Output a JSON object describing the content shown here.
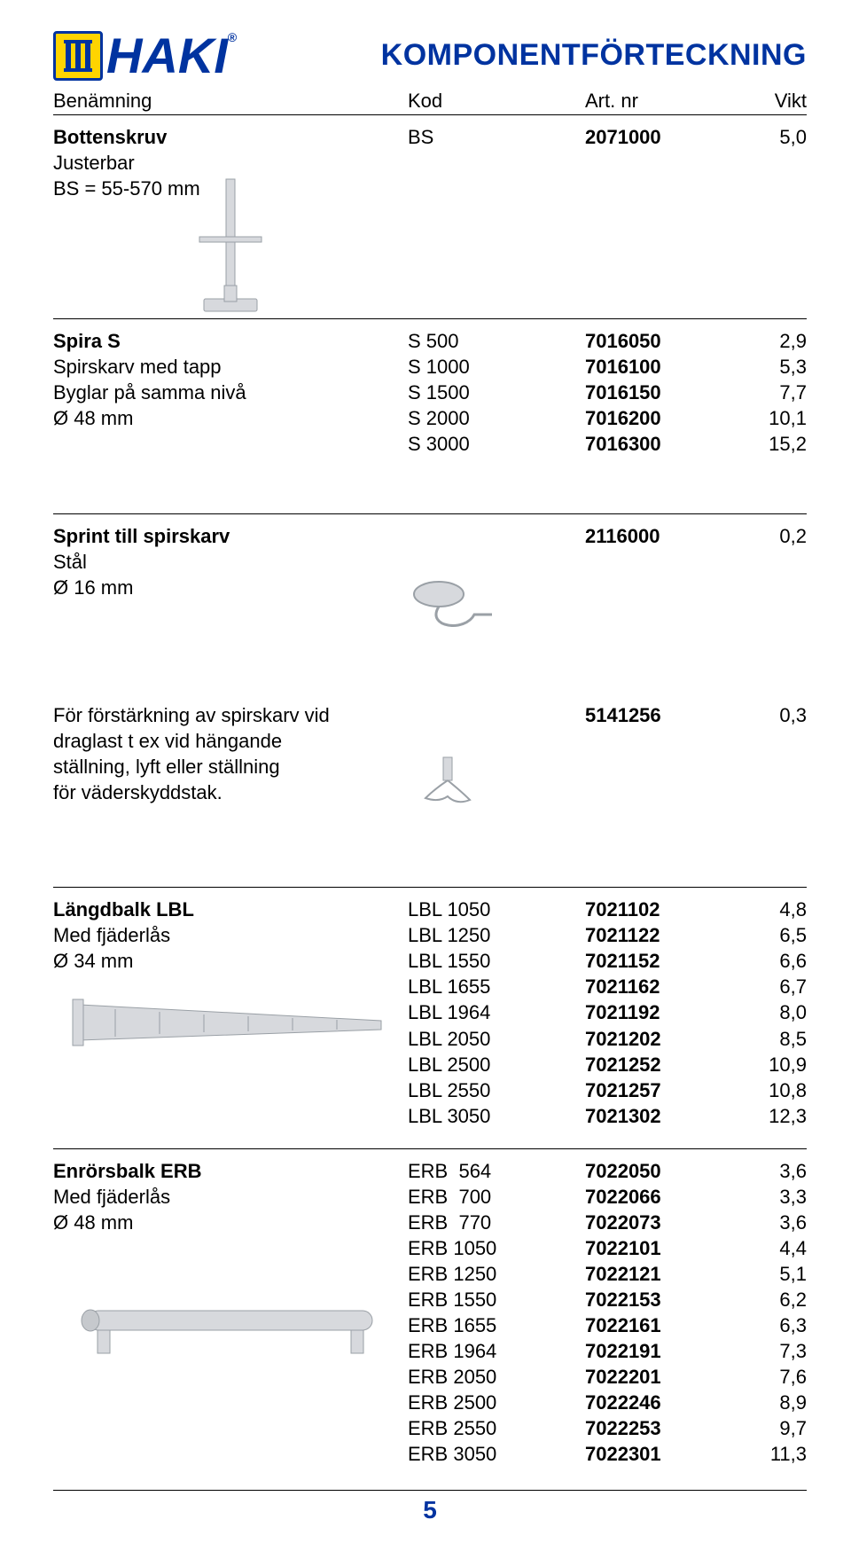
{
  "brand": {
    "name": "HAKI",
    "reg": "®"
  },
  "title": "KOMPONENTFÖRTECKNING",
  "columns": {
    "name": "Benämning",
    "kod": "Kod",
    "art": "Art. nr",
    "vikt": "Vikt"
  },
  "colors": {
    "brand_blue": "#0033a0",
    "brand_yellow": "#ffd400",
    "text": "#000000",
    "rule": "#000000",
    "bg": "#ffffff",
    "illus_fill": "#d7d9dd",
    "illus_stroke": "#9aa0a6"
  },
  "typography": {
    "title_fontsize": 34,
    "body_fontsize": 22,
    "logo_fontsize": 56,
    "page_fontsize": 28
  },
  "page_number": "5",
  "sections": [
    {
      "title_bold": "Bottenskruv",
      "desc_lines": [
        "Justerbar",
        "BS = 55-570 mm"
      ],
      "rows": [
        {
          "kod": "BS",
          "art": "2071000",
          "vikt": "5,0"
        }
      ]
    },
    {
      "title_bold": "Spira S",
      "desc_lines": [
        "Spirskarv med tapp",
        "Byglar på samma nivå",
        "Ø 48 mm"
      ],
      "rows": [
        {
          "kod": "S 500",
          "art": "7016050",
          "vikt": "2,9"
        },
        {
          "kod": "S 1000",
          "art": "7016100",
          "vikt": "5,3"
        },
        {
          "kod": "S 1500",
          "art": "7016150",
          "vikt": "7,7"
        },
        {
          "kod": "S 2000",
          "art": "7016200",
          "vikt": "10,1"
        },
        {
          "kod": "S 3000",
          "art": "7016300",
          "vikt": "15,2"
        }
      ]
    }
  ],
  "sprint": {
    "a": {
      "title": "Sprint till spirskarv",
      "desc": [
        "Stål",
        "Ø 16 mm"
      ],
      "art": "2116000",
      "vikt": "0,2"
    },
    "b": {
      "desc": [
        "För förstärkning av spirskarv vid",
        "draglast  t ex vid hängande",
        "ställning, lyft eller ställning",
        "för väderskyddstak."
      ],
      "art": "5141256",
      "vikt": "0,3"
    }
  },
  "lbl": {
    "title": "Längdbalk  LBL",
    "desc": [
      "Med fjäderlås",
      "Ø 34 mm"
    ],
    "rows": [
      {
        "kod": "LBL 1050",
        "art": "7021102",
        "vikt": "4,8"
      },
      {
        "kod": "LBL 1250",
        "art": "7021122",
        "vikt": "6,5"
      },
      {
        "kod": "LBL 1550",
        "art": "7021152",
        "vikt": "6,6"
      },
      {
        "kod": "LBL 1655",
        "art": "7021162",
        "vikt": "6,7"
      },
      {
        "kod": "LBL 1964",
        "art": "7021192",
        "vikt": "8,0"
      },
      {
        "kod": "LBL 2050",
        "art": "7021202",
        "vikt": "8,5"
      },
      {
        "kod": "LBL 2500",
        "art": "7021252",
        "vikt": "10,9"
      },
      {
        "kod": "LBL 2550",
        "art": "7021257",
        "vikt": "10,8"
      },
      {
        "kod": "LBL 3050",
        "art": "7021302",
        "vikt": "12,3"
      }
    ]
  },
  "erb": {
    "title": "Enrörsbalk  ERB",
    "desc": [
      "Med fjäderlås",
      "Ø 48 mm"
    ],
    "rows": [
      {
        "kod": "ERB  564",
        "art": "7022050",
        "vikt": "3,6"
      },
      {
        "kod": "ERB  700",
        "art": "7022066",
        "vikt": "3,3"
      },
      {
        "kod": "ERB  770",
        "art": "7022073",
        "vikt": "3,6"
      },
      {
        "kod": "ERB 1050",
        "art": "7022101",
        "vikt": "4,4"
      },
      {
        "kod": "ERB 1250",
        "art": "7022121",
        "vikt": "5,1"
      },
      {
        "kod": "ERB 1550",
        "art": "7022153",
        "vikt": "6,2"
      },
      {
        "kod": "ERB 1655",
        "art": "7022161",
        "vikt": "6,3"
      },
      {
        "kod": "ERB 1964",
        "art": "7022191",
        "vikt": "7,3"
      },
      {
        "kod": "ERB 2050",
        "art": "7022201",
        "vikt": "7,6"
      },
      {
        "kod": "ERB 2500",
        "art": "7022246",
        "vikt": "8,9"
      },
      {
        "kod": "ERB 2550",
        "art": "7022253",
        "vikt": "9,7"
      },
      {
        "kod": "ERB 3050",
        "art": "7022301",
        "vikt": "11,3"
      }
    ]
  }
}
